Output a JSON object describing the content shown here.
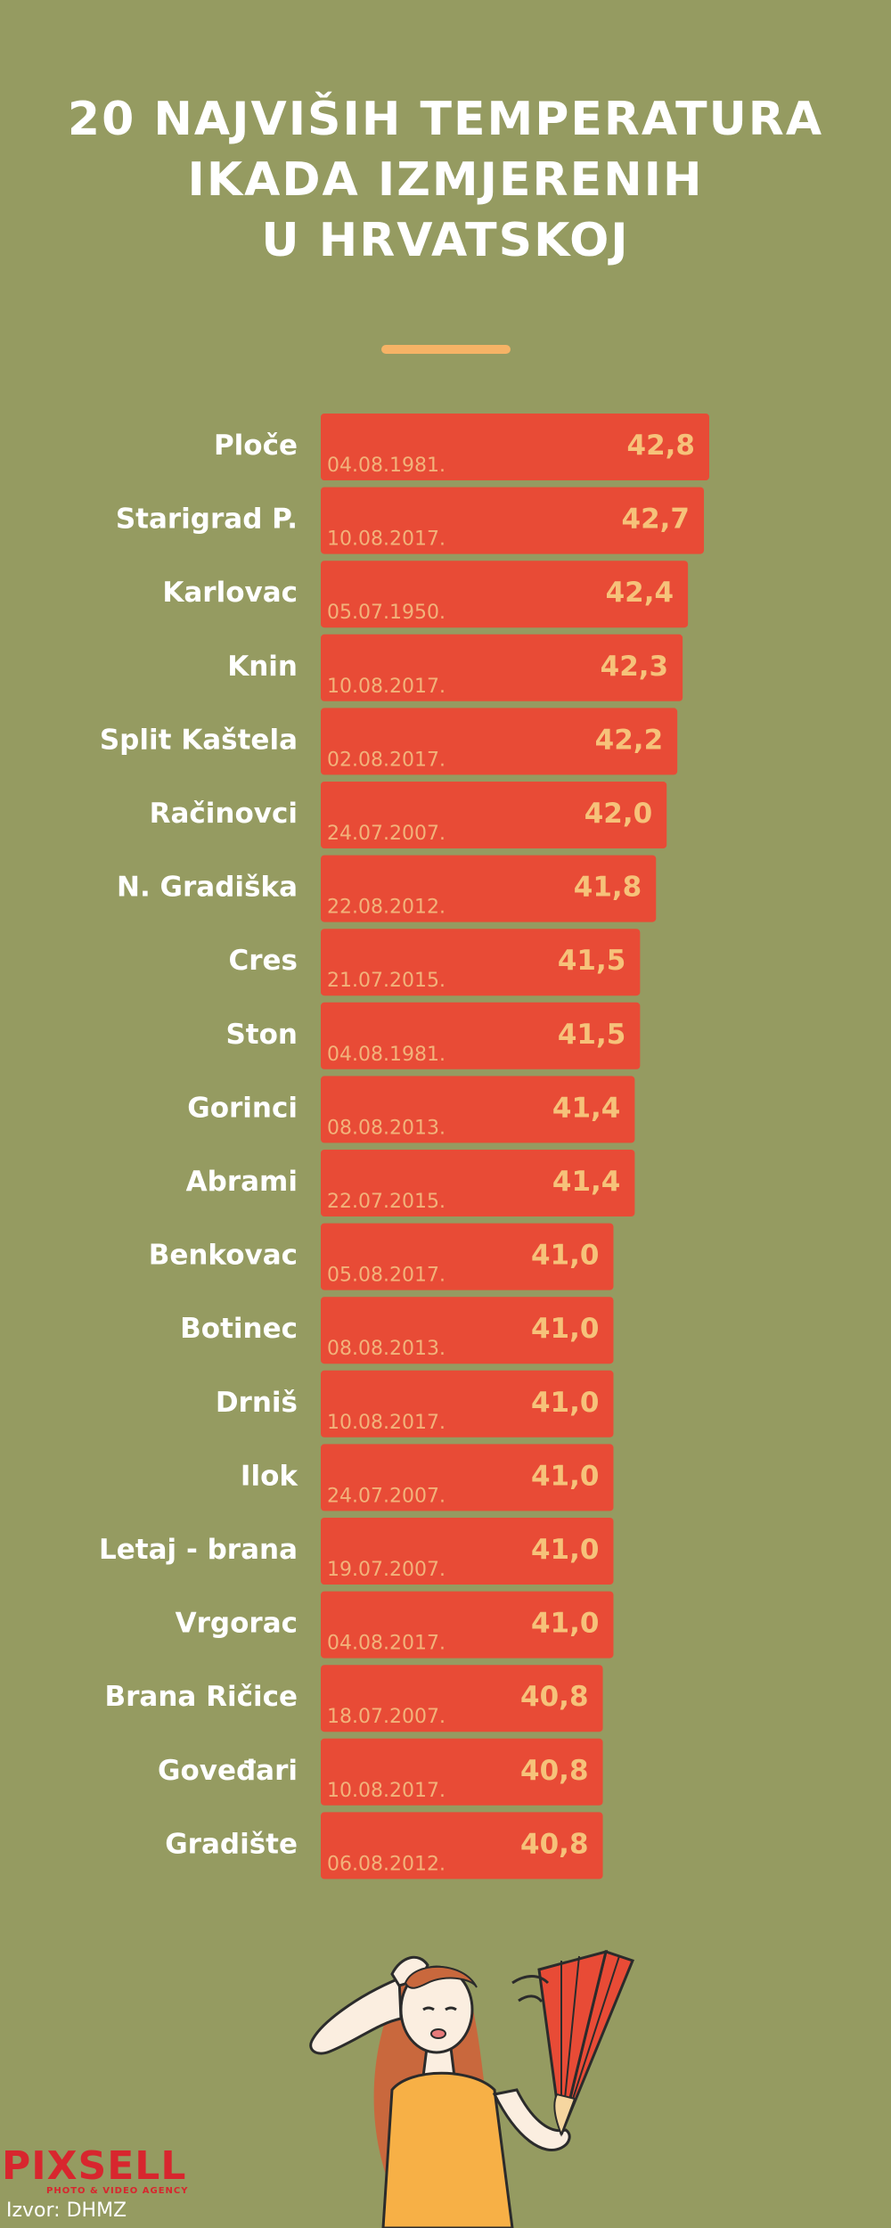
{
  "title_lines": [
    "20 NAJVIŠIH TEMPERATURA",
    "IKADA IZMJERENIH",
    "U HRVATSKOJ"
  ],
  "colors": {
    "background": "#959b61",
    "bar": "#e84b36",
    "accent": "#f6b366",
    "value_text": "#f6c27a",
    "date_text": "#f2b27a"
  },
  "logo": {
    "main": "PIXSELL",
    "sub": "PHOTO & VIDEO AGENCY"
  },
  "source": "Izvor: DHMZ",
  "chart_data": {
    "type": "bar",
    "orientation": "horizontal",
    "categories": [
      "Ploče",
      "Starigrad P.",
      "Karlovac",
      "Knin",
      "Split Kaštela",
      "Račinovci",
      "N. Gradiška",
      "Cres",
      "Ston",
      "Gorinci",
      "Abrami",
      "Benkovac",
      "Botinec",
      "Drniš",
      "Ilok",
      "Letaj - brana",
      "Vrgorac",
      "Brana Ričice",
      "Goveđari",
      "Gradište"
    ],
    "values": [
      42.8,
      42.7,
      42.4,
      42.3,
      42.2,
      42.0,
      41.8,
      41.5,
      41.5,
      41.4,
      41.4,
      41.0,
      41.0,
      41.0,
      41.0,
      41.0,
      41.0,
      40.8,
      40.8,
      40.8
    ],
    "value_labels": [
      "42,8",
      "42,7",
      "42,4",
      "42,3",
      "42,2",
      "42,0",
      "41,8",
      "41,5",
      "41,5",
      "41,4",
      "41,4",
      "41,0",
      "41,0",
      "41,0",
      "41,0",
      "41,0",
      "41,0",
      "40,8",
      "40,8",
      "40,8"
    ],
    "dates": [
      "04.08.1981.",
      "10.08.2017.",
      "05.07.1950.",
      "10.08.2017.",
      "02.08.2017.",
      "24.07.2007.",
      "22.08.2012.",
      "21.07.2015.",
      "04.08.1981.",
      "08.08.2013.",
      "22.07.2015.",
      "05.08.2017.",
      "08.08.2013.",
      "10.08.2017.",
      "24.07.2007.",
      "19.07.2007.",
      "04.08.2017.",
      "18.07.2007.",
      "10.08.2017.",
      "06.08.2012."
    ],
    "axis_min": 35.5,
    "grid": false,
    "legend": "none"
  }
}
